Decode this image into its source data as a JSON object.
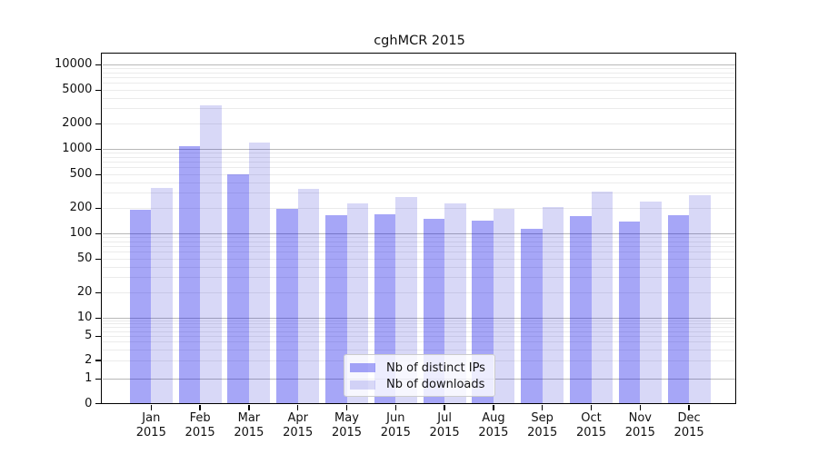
{
  "chart_data": {
    "type": "bar",
    "title": "cghMCR 2015",
    "categories": [
      "Jan",
      "Feb",
      "Mar",
      "Apr",
      "May",
      "Jun",
      "Jul",
      "Aug",
      "Sep",
      "Oct",
      "Nov",
      "Dec"
    ],
    "year_label": "2015",
    "series": [
      {
        "name": "Nb of distinct IPs",
        "color": "rgba(0,0,232,0.35)",
        "values": [
          190,
          1080,
          500,
          197,
          165,
          170,
          150,
          142,
          113,
          160,
          138,
          165
        ]
      },
      {
        "name": "Nb of downloads",
        "color": "rgba(10,10,205,0.16)",
        "values": [
          350,
          3300,
          1200,
          335,
          230,
          270,
          228,
          196,
          205,
          315,
          240,
          283
        ]
      }
    ],
    "y_ticks": [
      0,
      1,
      2,
      5,
      10,
      20,
      50,
      100,
      200,
      500,
      1000,
      2000,
      5000,
      10000
    ],
    "ylim": [
      0,
      12000
    ],
    "scale": "symlog",
    "grid": true,
    "legend_position": "lower center",
    "colors": {
      "bar_distinct_ips": "#a6a6f7",
      "bar_downloads": "#d8d8f7",
      "major_gridline": "#b8b8b8",
      "minor_gridline": "#ebebeb",
      "axis_frame": "#000000",
      "text": "#111111"
    }
  }
}
